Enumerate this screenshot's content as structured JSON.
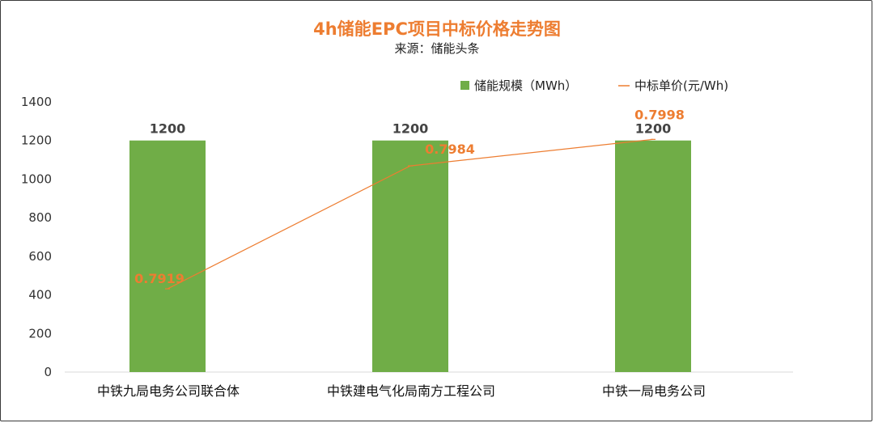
{
  "title": "4h储能EPC项目中标价格走势图",
  "subtitle": "来源：储能头条",
  "legend": {
    "bar_label": "储能规模（MWh）",
    "line_label": "中标单价(元/Wh)"
  },
  "colors": {
    "bar": "#70AD47",
    "line": "#ED7D31",
    "grid": "#d9d9d9",
    "axis": "#d9d9d9"
  },
  "chart_data": {
    "type": "bar",
    "title": "4h储能EPC项目中标价格走势图",
    "subtitle": "来源：储能头条",
    "categories": [
      "中铁九局电务公司联合体",
      "中铁建电气化局南方工程公司",
      "中铁一局电务公司"
    ],
    "series": [
      {
        "name": "储能规模（MWh）",
        "type": "bar",
        "axis": "left",
        "values": [
          1200,
          1200,
          1200
        ],
        "labels": [
          "1200",
          "1200",
          "1200"
        ]
      },
      {
        "name": "中标单价(元/Wh)",
        "type": "line",
        "axis": "secondary",
        "values": [
          0.7919,
          0.7984,
          0.7998
        ],
        "labels": [
          "0.7919",
          "0.7984",
          "0.7998"
        ]
      }
    ],
    "ylim": [
      0,
      1400
    ],
    "yticks": [
      "0",
      "200",
      "400",
      "600",
      "800",
      "1000",
      "1200",
      "1400"
    ],
    "secondary_axis_visible": false,
    "grid": false,
    "legend_position": "top-right"
  }
}
